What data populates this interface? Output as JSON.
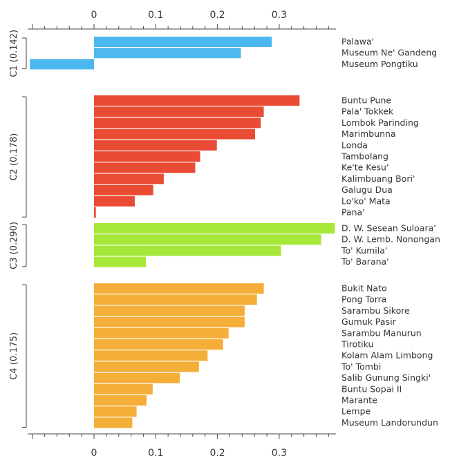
{
  "chart_data": {
    "type": "bar",
    "orientation": "horizontal",
    "xlim": [
      -0.105,
      0.39
    ],
    "x_ticks": [
      "0",
      "0.1",
      "0.2",
      "0.3"
    ],
    "x_tick_values": [
      0,
      0.1,
      0.2,
      0.3
    ],
    "axes": [
      "top",
      "bottom"
    ],
    "grid": false,
    "groups": [
      {
        "label": "C1 (0.142)",
        "color": "#4db8f0",
        "items": [
          {
            "name": "Palawa'",
            "value": 0.288
          },
          {
            "name": "Museum Ne' Gandeng",
            "value": 0.238
          },
          {
            "name": "Museum Pongtiku",
            "value": -0.104
          }
        ]
      },
      {
        "label": "C2 (0.178)",
        "color": "#e94b35",
        "items": [
          {
            "name": "Buntu Pune",
            "value": 0.333
          },
          {
            "name": "Pala' Tokkek",
            "value": 0.275
          },
          {
            "name": "Lombok Parinding",
            "value": 0.27
          },
          {
            "name": "Marimbunna",
            "value": 0.261
          },
          {
            "name": "Londa",
            "value": 0.199
          },
          {
            "name": "Tambolang",
            "value": 0.172
          },
          {
            "name": "Ke'te Kesu'",
            "value": 0.164
          },
          {
            "name": "Kalimbuang Bori'",
            "value": 0.113
          },
          {
            "name": "Galugu Dua",
            "value": 0.096
          },
          {
            "name": "Lo'ko' Mata",
            "value": 0.066
          },
          {
            "name": "Pana'",
            "value": 0.003
          }
        ]
      },
      {
        "label": "C3 (0.290)",
        "color": "#a5e83a",
        "items": [
          {
            "name": "D. W. Sesean Suloara'",
            "value": 0.39
          },
          {
            "name": "D. W. Lemb. Nonongan",
            "value": 0.368
          },
          {
            "name": "To' Kumila'",
            "value": 0.303
          },
          {
            "name": "To' Barana'",
            "value": 0.084
          }
        ]
      },
      {
        "label": "C4 (0.175)",
        "color": "#f5ae38",
        "items": [
          {
            "name": "Bukit Nato",
            "value": 0.275
          },
          {
            "name": "Pong Torra",
            "value": 0.264
          },
          {
            "name": "Sarambu Sikore",
            "value": 0.244
          },
          {
            "name": "Gumuk Pasir",
            "value": 0.244
          },
          {
            "name": "Sarambu Manurun",
            "value": 0.218
          },
          {
            "name": "Tirotiku",
            "value": 0.209
          },
          {
            "name": "Kolam Alam Limbong",
            "value": 0.184
          },
          {
            "name": "To' Tombi",
            "value": 0.17
          },
          {
            "name": "Salib Gunung Singki'",
            "value": 0.139
          },
          {
            "name": "Buntu Sopai II",
            "value": 0.095
          },
          {
            "name": "Marante",
            "value": 0.085
          },
          {
            "name": "Lempe",
            "value": 0.069
          },
          {
            "name": "Museum Landorundun",
            "value": 0.062
          }
        ]
      }
    ]
  }
}
